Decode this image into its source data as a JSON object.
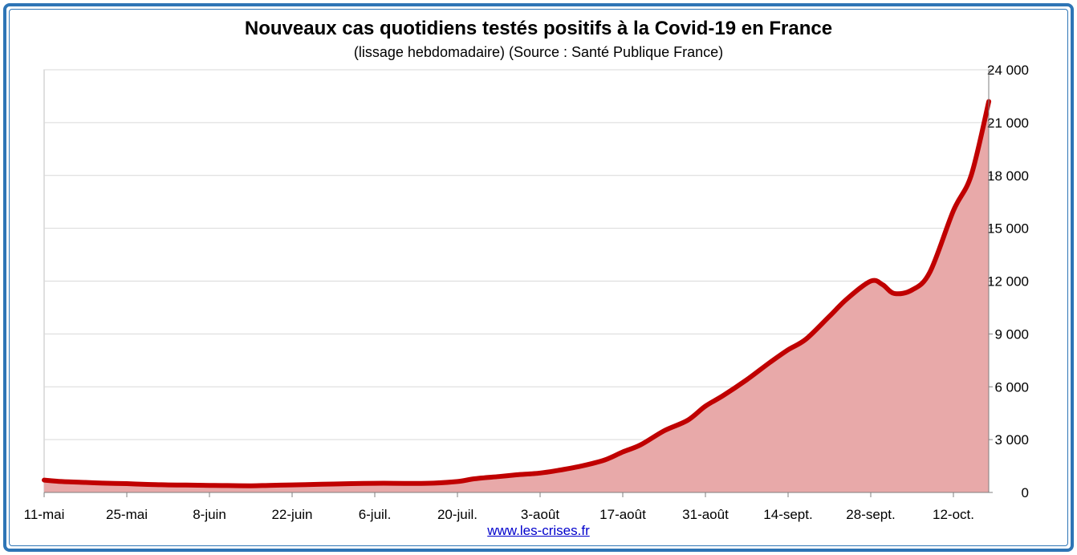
{
  "title": "Nouveaux cas quotidiens testés positifs à la Covid-19 en France",
  "subtitle": "(lissage hebdomadaire) (Source : Santé Publique France)",
  "source_link": "www.les-crises.fr",
  "colors": {
    "line": "#c00000",
    "area": "#e8a9a9",
    "frame": "#2e75b6",
    "grid": "#d9d9d9"
  },
  "chart_data": {
    "type": "area",
    "title": "Nouveaux cas quotidiens testés positifs à la Covid-19 en France",
    "subtitle": "(lissage hebdomadaire) (Source : Santé Publique France)",
    "xlabel": "",
    "ylabel": "",
    "ylim": [
      0,
      24000
    ],
    "y_axis_side": "right",
    "y_ticks": [
      0,
      3000,
      6000,
      9000,
      12000,
      15000,
      18000,
      21000,
      24000
    ],
    "y_tick_labels": [
      "0",
      "3 000",
      "6 000",
      "9 000",
      "12 000",
      "15 000",
      "18 000",
      "21 000",
      "24 000"
    ],
    "x_ticks": [
      "11-mai",
      "25-mai",
      "8-juin",
      "22-juin",
      "6-juil.",
      "20-juil.",
      "3-août",
      "17-août",
      "31-août",
      "14-sept.",
      "28-sept.",
      "12-oct."
    ],
    "grid": true,
    "legend": "none",
    "series": [
      {
        "x": [
          "11-mai",
          "14-mai",
          "18-mai",
          "21-mai",
          "25-mai",
          "28-mai",
          "1-juin",
          "4-juin",
          "8-juin",
          "11-juin",
          "15-juin",
          "18-juin",
          "22-juin",
          "25-juin",
          "29-juin",
          "2-juil.",
          "6-juil.",
          "9-juil.",
          "13-juil.",
          "16-juil.",
          "20-juil.",
          "23-juil.",
          "27-juil.",
          "30-juil.",
          "3-août",
          "6-août",
          "10-août",
          "14-août",
          "17-août",
          "20-août",
          "24-août",
          "28-août",
          "31-août",
          "3-sept.",
          "7-sept.",
          "11-sept.",
          "14-sept.",
          "17-sept.",
          "21-sept.",
          "24-sept.",
          "28-sept.",
          "30-sept.",
          "2-oct.",
          "5-oct.",
          "8-oct.",
          "12-oct.",
          "15-oct.",
          "18-oct."
        ],
        "values": [
          700,
          620,
          570,
          530,
          500,
          460,
          430,
          420,
          400,
          390,
          380,
          400,
          430,
          450,
          480,
          500,
          520,
          520,
          510,
          530,
          620,
          780,
          900,
          1000,
          1100,
          1250,
          1500,
          1850,
          2300,
          2700,
          3500,
          4100,
          4900,
          5500,
          6400,
          7400,
          8100,
          8700,
          10000,
          11000,
          12000,
          11800,
          11300,
          11500,
          12500,
          16000,
          18000,
          22200
        ]
      }
    ]
  }
}
